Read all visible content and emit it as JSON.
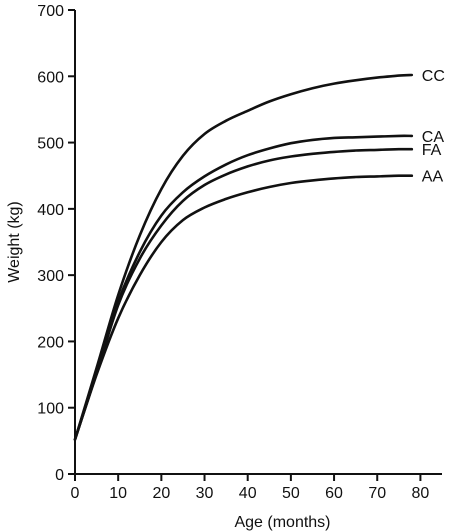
{
  "chart_data": {
    "type": "line",
    "title": "",
    "xlabel": "Age (months)",
    "ylabel": "Weight (kg)",
    "xlim": [
      0,
      85
    ],
    "ylim": [
      0,
      700
    ],
    "xticks": [
      0,
      10,
      20,
      30,
      40,
      50,
      60,
      70,
      80
    ],
    "yticks": [
      0,
      100,
      200,
      300,
      400,
      500,
      600,
      700
    ],
    "grid": false,
    "legend": "inline labels at line ends (right)",
    "line_color": "#111111",
    "series": [
      {
        "name": "CC",
        "x": [
          0,
          5,
          10,
          15,
          20,
          25,
          30,
          35,
          40,
          45,
          50,
          55,
          60,
          65,
          70,
          75,
          78
        ],
        "y": [
          52,
          160,
          270,
          360,
          430,
          480,
          513,
          533,
          548,
          562,
          573,
          582,
          589,
          594,
          598,
          601,
          602
        ]
      },
      {
        "name": "CA",
        "x": [
          0,
          5,
          10,
          15,
          20,
          25,
          30,
          35,
          40,
          45,
          50,
          55,
          60,
          65,
          70,
          75,
          78
        ],
        "y": [
          52,
          155,
          260,
          335,
          390,
          425,
          449,
          467,
          481,
          491,
          499,
          504,
          507,
          508,
          509,
          510,
          510
        ]
      },
      {
        "name": "FA",
        "x": [
          0,
          5,
          10,
          15,
          20,
          25,
          30,
          35,
          40,
          45,
          50,
          55,
          60,
          65,
          70,
          75,
          78
        ],
        "y": [
          52,
          152,
          255,
          325,
          375,
          412,
          436,
          452,
          464,
          473,
          479,
          483,
          486,
          488,
          489,
          490,
          490
        ]
      },
      {
        "name": "AA",
        "x": [
          0,
          5,
          10,
          15,
          20,
          25,
          30,
          35,
          40,
          45,
          50,
          55,
          60,
          65,
          70,
          75,
          78
        ],
        "y": [
          52,
          150,
          235,
          300,
          350,
          383,
          402,
          415,
          425,
          433,
          439,
          443,
          446,
          448,
          449,
          450,
          450
        ]
      }
    ]
  }
}
